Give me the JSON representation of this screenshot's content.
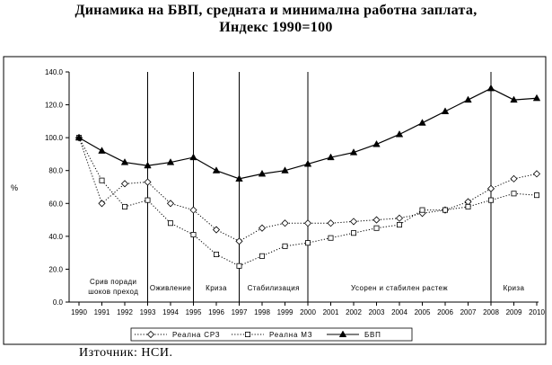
{
  "title": {
    "line1": "Динамика на БВП, средната и минимална работна заплата,",
    "line2": "Индекс 1990=100"
  },
  "source": "Източник: НСИ.",
  "chart_data": {
    "type": "line",
    "x": [
      "1990",
      "1991",
      "1992",
      "1993",
      "1994",
      "1995",
      "1996",
      "1997",
      "1998",
      "1999",
      "2000",
      "2001",
      "2002",
      "2003",
      "2004",
      "2005",
      "2006",
      "2007",
      "2008",
      "2009",
      "2010"
    ],
    "ylabel": "%",
    "ylim": [
      0,
      140
    ],
    "yticks": [
      "0.0",
      "20.0",
      "40.0",
      "60.0",
      "80.0",
      "100.0",
      "120.0",
      "140.0"
    ],
    "grid": false,
    "legend_position": "bottom",
    "series": [
      {
        "name": "Реална СРЗ",
        "marker": "diamond",
        "style": "dotted",
        "values": [
          100,
          60,
          72,
          73,
          60,
          56,
          44,
          37,
          45,
          48,
          48,
          48,
          49,
          50,
          51,
          54,
          56,
          61,
          69,
          75,
          78
        ]
      },
      {
        "name": "Реална МЗ",
        "marker": "square",
        "style": "dotted",
        "values": [
          100,
          74,
          58,
          62,
          48,
          41,
          29,
          22,
          28,
          34,
          36,
          39,
          42,
          45,
          47,
          56,
          56,
          58,
          62,
          66,
          65
        ]
      },
      {
        "name": "БВП",
        "marker": "triangle",
        "style": "solid",
        "values": [
          100,
          92,
          85,
          83,
          85,
          88,
          80,
          75,
          78,
          80,
          84,
          88,
          91,
          96,
          102,
          109,
          116,
          123,
          130,
          123,
          124
        ]
      }
    ],
    "period_dividers": [
      1993,
      1995,
      1997,
      2000,
      2008
    ],
    "period_labels": [
      {
        "lines": [
          "Срив поради",
          "шоков преход"
        ],
        "center": 1991.5
      },
      {
        "lines": [
          "Оживление"
        ],
        "center": 1994
      },
      {
        "lines": [
          "Криза"
        ],
        "center": 1996
      },
      {
        "lines": [
          "Стабилизация"
        ],
        "center": 1998.5
      },
      {
        "lines": [
          "Усорен и стабилен растеж"
        ],
        "center": 2004
      },
      {
        "lines": [
          "Криза"
        ],
        "center": 2009
      }
    ],
    "colors": {
      "line": "#000000",
      "marker_fill": "#ffffff"
    }
  }
}
